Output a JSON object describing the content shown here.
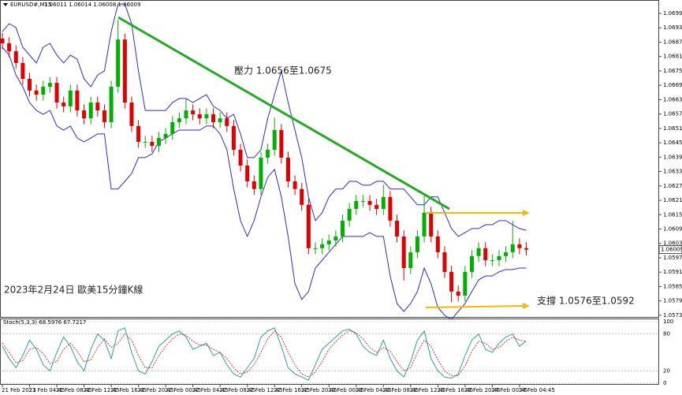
{
  "chart_data": [
    {
      "type": "candlestick",
      "title": "EURUSD#,M15",
      "header_values": "1.06011 1.06014 1.06008 1.06009",
      "annotations": {
        "resistance": "壓力 1.0656至1.0675",
        "support": "支撐 1.0576至1.0592",
        "caption": "2023年2月24日 歐美15分鐘K線"
      },
      "categories": [
        "21 Feb 2023",
        null,
        null,
        null,
        "21 Feb 04:45",
        null,
        null,
        null,
        "21 Feb 08:45",
        null,
        null,
        null,
        "21 Feb 12:45",
        null,
        null,
        null,
        "21 Feb 16:45",
        null,
        null,
        null,
        "21 Feb 20:45",
        null,
        null,
        null,
        "22 Feb 00:45",
        null,
        null,
        null,
        "22 Feb 04:45",
        null,
        null,
        null,
        "22 Feb 08:45",
        null,
        null,
        null,
        "22 Feb 12:45",
        null,
        null,
        null,
        "22 Feb 16:45",
        null,
        null,
        null,
        "22 Feb 20:45",
        null,
        null,
        null,
        "23 Feb 00:45",
        null,
        null,
        null,
        "23 Feb 04:45",
        null,
        null,
        null,
        "23 Feb 08:45",
        null,
        null,
        null,
        "23 Feb 12:45",
        null,
        null,
        null,
        "23 Feb 16:45",
        null,
        null,
        null,
        "23 Feb 20:45",
        null,
        null,
        null,
        "24 Feb 00:45",
        null,
        null,
        null,
        "24 Feb 04:45",
        null
      ],
      "open": [
        1.0689,
        1.0687,
        1.06837,
        1.06788,
        1.06722,
        1.06673,
        1.06656,
        1.06689,
        1.06705,
        1.06623,
        1.06607,
        1.06673,
        1.0659,
        1.06557,
        1.06623,
        1.0659,
        1.06541,
        1.06689,
        1.06886,
        1.06623,
        1.06525,
        1.06459,
        1.06459,
        1.06442,
        1.06475,
        1.06492,
        1.06541,
        1.06557,
        1.0659,
        1.06574,
        1.06557,
        1.06574,
        1.06541,
        1.06557,
        1.06525,
        1.06426,
        1.0636,
        1.06294,
        1.06262,
        1.06393,
        1.06426,
        1.06508,
        1.06393,
        1.06294,
        1.06262,
        1.06196,
        1.06015,
        1.06015,
        1.06031,
        1.06047,
        1.06064,
        1.0613,
        1.06179,
        1.06212,
        1.06212,
        1.06196,
        1.06179,
        1.06229,
        1.0613,
        1.06064,
        1.05932,
        1.05998,
        1.06064,
        1.06163,
        1.06064,
        1.05998,
        1.05916,
        1.05834,
        1.05817,
        1.05916,
        1.05982,
        1.06015,
        1.05965,
        1.05965,
        1.05982,
        1.05998,
        1.06031,
        1.06015
      ],
      "high": [
        1.06915,
        1.06895,
        1.06862,
        1.06813,
        1.06747,
        1.06698,
        1.06714,
        1.0673,
        1.0673,
        1.06648,
        1.06698,
        1.06698,
        1.06615,
        1.06648,
        1.06648,
        1.06615,
        1.06714,
        1.06969,
        1.06911,
        1.06648,
        1.0655,
        1.06484,
        1.06484,
        1.065,
        1.06517,
        1.06566,
        1.06582,
        1.0664,
        1.06615,
        1.06599,
        1.06599,
        1.06599,
        1.06582,
        1.06582,
        1.0655,
        1.06451,
        1.06385,
        1.06319,
        1.06418,
        1.06451,
        1.0656,
        1.06533,
        1.06418,
        1.06319,
        1.06287,
        1.06221,
        1.0604,
        1.06056,
        1.06072,
        1.06089,
        1.06155,
        1.06204,
        1.06237,
        1.06237,
        1.06237,
        1.06221,
        1.0628,
        1.06254,
        1.06155,
        1.06089,
        1.06023,
        1.06089,
        1.0624,
        1.06188,
        1.06089,
        1.06023,
        1.05941,
        1.05859,
        1.05941,
        1.06007,
        1.0604,
        1.0604,
        1.0599,
        1.06007,
        1.06023,
        1.0613,
        1.06056,
        1.0604
      ],
      "low": [
        1.06845,
        1.06812,
        1.06763,
        1.06697,
        1.06648,
        1.06631,
        1.06631,
        1.06664,
        1.06598,
        1.06582,
        1.06582,
        1.06565,
        1.06532,
        1.06532,
        1.06565,
        1.06516,
        1.06516,
        1.06664,
        1.06598,
        1.065,
        1.06434,
        1.06434,
        1.06417,
        1.06417,
        1.0645,
        1.06467,
        1.06516,
        1.06532,
        1.06549,
        1.06532,
        1.06532,
        1.06516,
        1.06516,
        1.065,
        1.06401,
        1.06335,
        1.06269,
        1.06237,
        1.06237,
        1.06368,
        1.06401,
        1.06368,
        1.06269,
        1.06237,
        1.06171,
        1.0599,
        1.0599,
        1.0599,
        1.06006,
        1.06022,
        1.06039,
        1.06105,
        1.06154,
        1.06187,
        1.06171,
        1.06154,
        1.06154,
        1.06105,
        1.06039,
        1.0588,
        1.05907,
        1.05973,
        1.06039,
        1.06039,
        1.05973,
        1.05891,
        1.0579,
        1.05792,
        1.05792,
        1.05891,
        1.05957,
        1.0594,
        1.0594,
        1.0594,
        1.05957,
        1.05973,
        1.0599,
        1.05984
      ],
      "close": [
        1.0687,
        1.06837,
        1.06788,
        1.06722,
        1.06673,
        1.06656,
        1.06689,
        1.06705,
        1.06623,
        1.06607,
        1.06673,
        1.0659,
        1.06557,
        1.06623,
        1.0659,
        1.06541,
        1.06689,
        1.06886,
        1.06623,
        1.06525,
        1.06459,
        1.06459,
        1.06442,
        1.06475,
        1.06492,
        1.06541,
        1.06557,
        1.0659,
        1.06574,
        1.06557,
        1.06574,
        1.06541,
        1.06557,
        1.06525,
        1.06426,
        1.0636,
        1.06294,
        1.06262,
        1.06393,
        1.06426,
        1.06508,
        1.06393,
        1.06294,
        1.06262,
        1.06196,
        1.06015,
        1.06015,
        1.06031,
        1.06047,
        1.06064,
        1.0613,
        1.06179,
        1.06212,
        1.06212,
        1.06196,
        1.06179,
        1.06229,
        1.0613,
        1.06064,
        1.05932,
        1.05998,
        1.06064,
        1.06163,
        1.06064,
        1.05998,
        1.05916,
        1.05834,
        1.05817,
        1.05916,
        1.05982,
        1.06015,
        1.05965,
        1.05965,
        1.05982,
        1.05998,
        1.06031,
        1.06015,
        1.06009
      ],
      "bands": {
        "color": "#2b2bd0",
        "upper": [
          1.06919,
          1.06952,
          1.06936,
          1.06854,
          1.06821,
          1.06788,
          1.06854,
          1.0687,
          1.06821,
          1.06788,
          1.06821,
          1.06804,
          1.06722,
          1.06689,
          1.06738,
          1.06755,
          1.06919,
          1.07034,
          1.07034,
          1.06952,
          1.06755,
          1.0659,
          1.0659,
          1.0659,
          1.0659,
          1.06623,
          1.0664,
          1.0664,
          1.06623,
          1.0664,
          1.06656,
          1.06607,
          1.0659,
          1.06557,
          1.06574,
          1.06492,
          1.06393,
          1.06393,
          1.06426,
          1.06557,
          1.06656,
          1.06755,
          1.06623,
          1.06508,
          1.06393,
          1.06229,
          1.0613,
          1.06163,
          1.06229,
          1.06262,
          1.06262,
          1.06294,
          1.06294,
          1.06278,
          1.06278,
          1.06294,
          1.06294,
          1.06262,
          1.06262,
          1.06262,
          1.06229,
          1.06196,
          1.06196,
          1.06229,
          1.06229,
          1.06163,
          1.06097,
          1.06064,
          1.0608,
          1.06097,
          1.06097,
          1.06113,
          1.06113,
          1.0613,
          1.0613,
          1.06113,
          1.06097,
          1.0609
        ],
        "lower": [
          1.06854,
          1.06821,
          1.06738,
          1.06689,
          1.06623,
          1.0659,
          1.06574,
          1.0659,
          1.06525,
          1.06508,
          1.06525,
          1.06475,
          1.06459,
          1.06475,
          1.06492,
          1.06492,
          1.06262,
          1.06262,
          1.06294,
          1.06327,
          1.06393,
          1.06393,
          1.06409,
          1.06459,
          1.06475,
          1.06492,
          1.06508,
          1.06508,
          1.06508,
          1.06508,
          1.06525,
          1.06525,
          1.06492,
          1.06426,
          1.06262,
          1.0613,
          1.06064,
          1.0613,
          1.06229,
          1.06311,
          1.06344,
          1.06229,
          1.06064,
          1.05867,
          1.05801,
          1.05834,
          1.05932,
          1.05965,
          1.05998,
          1.06031,
          1.06064,
          1.06064,
          1.06064,
          1.06064,
          1.0608,
          1.06064,
          1.06064,
          1.05899,
          1.05784,
          1.05751,
          1.05784,
          1.05834,
          1.05932,
          1.05867,
          1.05768,
          1.05735,
          1.05718,
          1.05751,
          1.05784,
          1.05834,
          1.05883,
          1.05899,
          1.05899,
          1.05916,
          1.05926,
          1.05926,
          1.05932,
          1.05932
        ]
      },
      "up_color": "#00b000",
      "down_color": "#e00000",
      "ylim": [
        1.05728,
        1.07051
      ],
      "yticks": [
        1.05735,
        1.05795,
        1.05855,
        1.05915,
        1.05975,
        1.06035,
        1.06095,
        1.06155,
        1.06215,
        1.06275,
        1.06335,
        1.06395,
        1.06455,
        1.06515,
        1.06575,
        1.06635,
        1.06695,
        1.06755,
        1.06815,
        1.06875,
        1.06935,
        1.06995
      ]
    },
    {
      "type": "line",
      "title": "Stoch(5,3,3) 68.5976 67.7217",
      "series": [
        {
          "color": "#2aa198",
          "values": [
            60,
            40,
            25,
            45,
            70,
            55,
            30,
            20,
            50,
            75,
            60,
            35,
            20,
            55,
            80,
            70,
            40,
            85,
            90,
            50,
            20,
            15,
            35,
            60,
            70,
            80,
            85,
            75,
            55,
            60,
            65,
            45,
            50,
            30,
            15,
            10,
            25,
            40,
            75,
            85,
            90,
            60,
            25,
            15,
            10,
            5,
            30,
            55,
            65,
            75,
            85,
            88,
            80,
            60,
            50,
            45,
            70,
            40,
            20,
            10,
            35,
            70,
            85,
            40,
            20,
            10,
            8,
            15,
            45,
            70,
            80,
            55,
            50,
            65,
            75,
            80,
            60,
            68.5976
          ]
        },
        {
          "color": "#e03030",
          "dashed": true,
          "values": [
            65,
            50,
            33,
            37,
            55,
            58,
            48,
            32,
            35,
            55,
            65,
            52,
            35,
            38,
            58,
            72,
            58,
            65,
            80,
            70,
            45,
            25,
            25,
            45,
            60,
            72,
            80,
            78,
            68,
            62,
            62,
            55,
            50,
            40,
            25,
            15,
            18,
            30,
            50,
            72,
            85,
            75,
            50,
            30,
            15,
            10,
            18,
            35,
            55,
            68,
            78,
            85,
            82,
            72,
            58,
            50,
            58,
            52,
            35,
            20,
            25,
            50,
            70,
            60,
            38,
            20,
            12,
            12,
            28,
            52,
            68,
            65,
            55,
            58,
            68,
            75,
            70,
            67.7217
          ]
        }
      ],
      "ylim": [
        0,
        100
      ],
      "yticks": [
        0,
        20,
        80,
        100
      ]
    }
  ]
}
